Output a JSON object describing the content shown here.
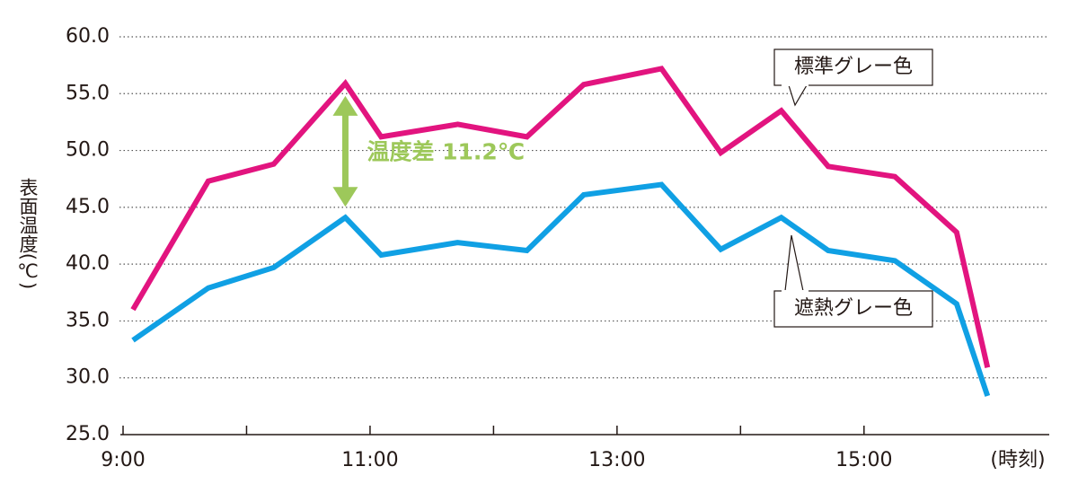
{
  "chart_data": {
    "type": "line",
    "y_label": "表面温度(℃)",
    "x_label": "(時刻)",
    "x": [
      9.08,
      9.69,
      10.22,
      10.8,
      11.09,
      11.71,
      12.27,
      12.73,
      13.36,
      13.84,
      14.33,
      14.71,
      15.25,
      15.75,
      16.0
    ],
    "series": [
      {
        "name": "標準グレー色",
        "color": "#e2147f",
        "values": [
          36.0,
          47.3,
          48.8,
          55.9,
          51.2,
          52.3,
          51.2,
          55.8,
          57.2,
          49.8,
          53.5,
          48.6,
          47.7,
          42.8,
          30.9
        ]
      },
      {
        "name": "遮熱グレー色",
        "color": "#10a0e4",
        "values": [
          33.3,
          37.9,
          39.7,
          44.1,
          40.8,
          41.9,
          41.2,
          46.1,
          47.0,
          41.3,
          44.1,
          41.2,
          40.3,
          36.5,
          28.4
        ]
      }
    ],
    "annotation": {
      "text": "温度差 11.2℃",
      "x": 10.8,
      "color": "#9dc85a"
    },
    "xlim": [
      9,
      16.5
    ],
    "xticks": [
      {
        "value": 9,
        "label": "9:00"
      },
      {
        "value": 11,
        "label": "11:00"
      },
      {
        "value": 13,
        "label": "13:00"
      },
      {
        "value": 15,
        "label": "15:00"
      }
    ],
    "xminorticks": [
      10,
      12,
      14
    ],
    "ylim": [
      25,
      60
    ],
    "yticks": [
      {
        "value": 25,
        "label": "25.0"
      },
      {
        "value": 30,
        "label": "30.0"
      },
      {
        "value": 35,
        "label": "35.0"
      },
      {
        "value": 40,
        "label": "40.0"
      },
      {
        "value": 45,
        "label": "45.0"
      },
      {
        "value": 50,
        "label": "50.0"
      },
      {
        "value": 55,
        "label": "55.0"
      },
      {
        "value": 60,
        "label": "60.0"
      }
    ],
    "grid": true
  }
}
